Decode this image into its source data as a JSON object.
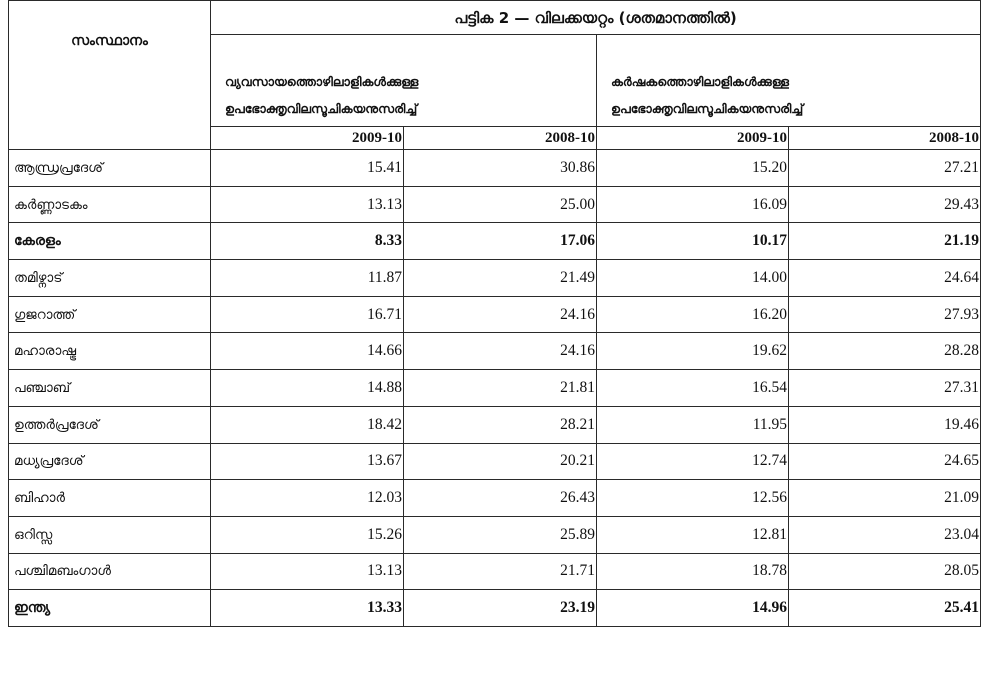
{
  "table": {
    "title": "പട്ടിക 2 — വിലക്കയറ്റം (ശതമാനത്തിൽ)",
    "state_header": "സംസ്ഥാനം",
    "group1": {
      "line1": "വ്യവസായത്തൊഴിലാളികൾക്കുള്ള",
      "line2": "ഉപഭോക്തൃവിലസൂചികയനുസരിച്ച്"
    },
    "group2": {
      "line1": "കർഷകത്തൊഴിലാളികൾക്കുള്ള",
      "line2": "ഉപഭോക്തൃവിലസൂചികയനുസരിച്ച്"
    },
    "years": [
      "2009-10",
      "2008-10",
      "2009-10",
      "2008-10"
    ],
    "rows": [
      {
        "state": "ആന്ധ്രപ്രദേശ്",
        "values": [
          "15.41",
          "30.86",
          "15.20",
          "27.21"
        ],
        "bold": false
      },
      {
        "state": "കർണ്ണാടകം",
        "values": [
          "13.13",
          "25.00",
          "16.09",
          "29.43"
        ],
        "bold": false
      },
      {
        "state": "കേരളം",
        "values": [
          "8.33",
          "17.06",
          "10.17",
          "21.19"
        ],
        "bold": true
      },
      {
        "state": "തമിഴ്നാട്",
        "values": [
          "11.87",
          "21.49",
          "14.00",
          "24.64"
        ],
        "bold": false
      },
      {
        "state": "ഗുജറാത്ത്",
        "values": [
          "16.71",
          "24.16",
          "16.20",
          "27.93"
        ],
        "bold": false
      },
      {
        "state": "മഹാരാഷ്ട്ര",
        "values": [
          "14.66",
          "24.16",
          "19.62",
          "28.28"
        ],
        "bold": false
      },
      {
        "state": "പഞ്ചാബ്",
        "values": [
          "14.88",
          "21.81",
          "16.54",
          "27.31"
        ],
        "bold": false
      },
      {
        "state": "ഉത്തർപ്രദേശ്",
        "values": [
          "18.42",
          "28.21",
          "11.95",
          "19.46"
        ],
        "bold": false
      },
      {
        "state": "മധ്യപ്രദേശ്",
        "values": [
          "13.67",
          "20.21",
          "12.74",
          "24.65"
        ],
        "bold": false
      },
      {
        "state": "ബിഹാർ",
        "values": [
          "12.03",
          "26.43",
          "12.56",
          "21.09"
        ],
        "bold": false
      },
      {
        "state": "ഒറിസ്സ",
        "values": [
          "15.26",
          "25.89",
          "12.81",
          "23.04"
        ],
        "bold": false
      },
      {
        "state": "പശ്ചിമബംഗാൾ",
        "values": [
          "13.13",
          "21.71",
          "18.78",
          "28.05"
        ],
        "bold": false
      },
      {
        "state": "ഇന്ത്യ",
        "values": [
          "13.33",
          "23.19",
          "14.96",
          "25.41"
        ],
        "bold": true
      }
    ]
  }
}
